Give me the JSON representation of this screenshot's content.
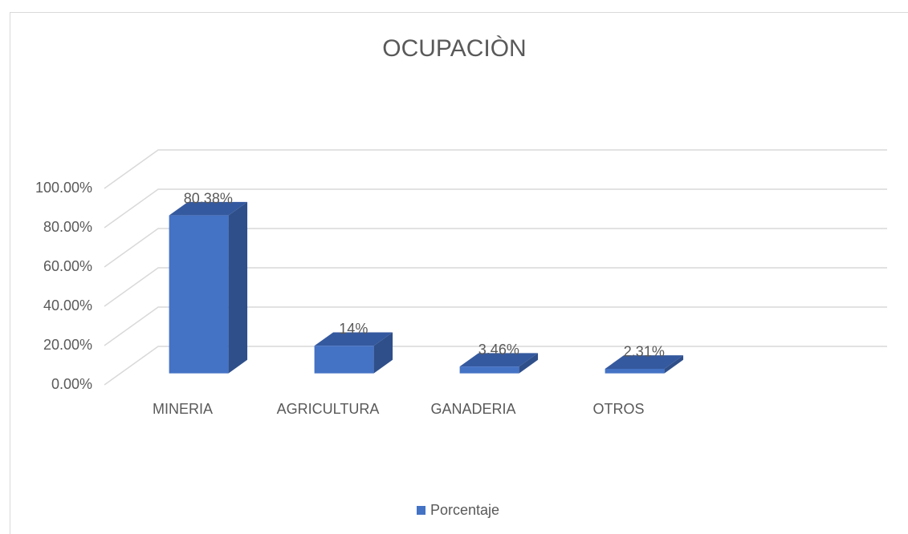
{
  "chart_data": {
    "type": "bar3d",
    "title": "OCUPACIÒN",
    "categories": [
      "MINERIA",
      "AGRICULTURA",
      "GANADERIA",
      "OTROS"
    ],
    "series": [
      {
        "name": "Porcentaje",
        "color": "#4472c4",
        "values": [
          80.38,
          14,
          3.46,
          2.31
        ],
        "value_labels": [
          "80.38%",
          "14%",
          "3.46%",
          "2.31%"
        ]
      }
    ],
    "ylim": [
      0,
      100
    ],
    "yticks": [
      {
        "value": 0,
        "label": "0.00%"
      },
      {
        "value": 20,
        "label": "20.00%"
      },
      {
        "value": 40,
        "label": "40.00%"
      },
      {
        "value": 60,
        "label": "60.00%"
      },
      {
        "value": 80,
        "label": "80.00%"
      },
      {
        "value": 100,
        "label": "100.00%"
      }
    ],
    "grid": true,
    "legend": "bottom"
  }
}
